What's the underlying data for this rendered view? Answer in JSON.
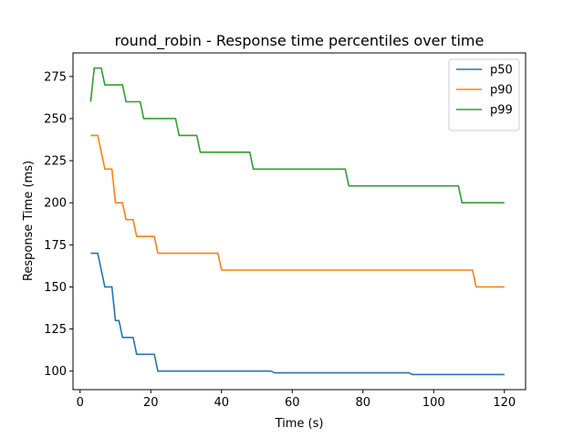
{
  "chart_data": {
    "type": "line",
    "title": "round_robin - Response time percentiles over time",
    "xlabel": "Time (s)",
    "ylabel": "Response Time (ms)",
    "xlim": [
      -2,
      126
    ],
    "ylim": [
      89,
      289
    ],
    "xticks": [
      0,
      20,
      40,
      60,
      80,
      100,
      120
    ],
    "yticks": [
      100,
      125,
      150,
      175,
      200,
      225,
      250,
      275
    ],
    "legend_position": "top-right",
    "grid": false,
    "series": [
      {
        "name": "p50",
        "color": "#1f77b4",
        "x": [
          3,
          5,
          7,
          9,
          10,
          11,
          12,
          13,
          15,
          16,
          18,
          21,
          22,
          24,
          54,
          55,
          93,
          94,
          120
        ],
        "y": [
          170,
          170,
          150,
          150,
          130,
          130,
          120,
          120,
          120,
          110,
          110,
          110,
          100,
          100,
          100,
          99,
          99,
          98,
          98
        ]
      },
      {
        "name": "p90",
        "color": "#ff7f0e",
        "x": [
          3,
          5,
          7,
          9,
          10,
          12,
          13,
          15,
          16,
          21,
          22,
          39,
          40,
          111,
          112,
          120
        ],
        "y": [
          240,
          240,
          220,
          220,
          200,
          200,
          190,
          190,
          180,
          180,
          170,
          170,
          160,
          160,
          150,
          150
        ]
      },
      {
        "name": "p99",
        "color": "#2ca02c",
        "x": [
          3,
          4,
          6,
          7,
          12,
          13,
          17,
          18,
          27,
          28,
          33,
          34,
          48,
          49,
          75,
          76,
          107,
          108,
          120
        ],
        "y": [
          260,
          280,
          280,
          270,
          270,
          260,
          260,
          250,
          250,
          240,
          240,
          230,
          230,
          220,
          220,
          210,
          210,
          200,
          200
        ]
      }
    ]
  }
}
